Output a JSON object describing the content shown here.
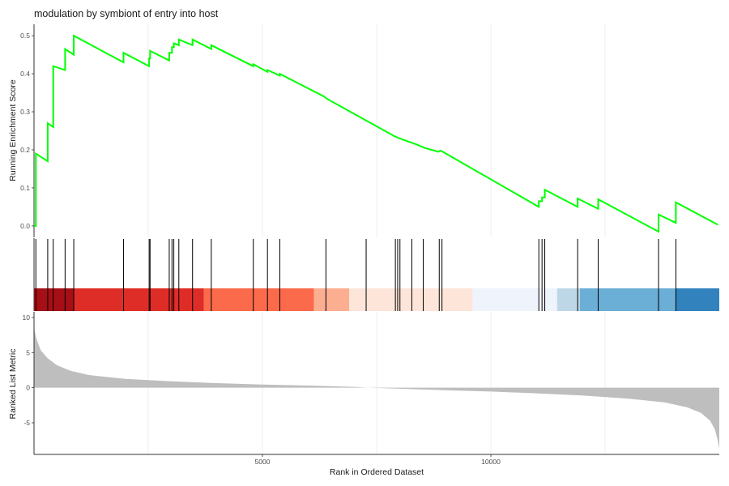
{
  "chart_data": {
    "type": "gsea_enrichment_plot",
    "title": "modulation by symbiont of entry into host",
    "xlabel": "Rank in Ordered Dataset",
    "xlim": [
      0,
      15000
    ],
    "x_ticks": [
      5000,
      10000
    ],
    "es_panel": {
      "ylabel": "Running Enrichment Score",
      "ylim": [
        -0.03,
        0.53
      ],
      "y_ticks": [
        0.0,
        0.1,
        0.2,
        0.3,
        0.4,
        0.5
      ],
      "line_color": "#00ff00",
      "points": [
        [
          0,
          0.0
        ],
        [
          40,
          0.0
        ],
        [
          40,
          0.19
        ],
        [
          300,
          0.17
        ],
        [
          300,
          0.27
        ],
        [
          420,
          0.26
        ],
        [
          420,
          0.42
        ],
        [
          680,
          0.41
        ],
        [
          680,
          0.465
        ],
        [
          870,
          0.45
        ],
        [
          870,
          0.5
        ],
        [
          1960,
          0.43
        ],
        [
          1960,
          0.455
        ],
        [
          2520,
          0.42
        ],
        [
          2520,
          0.44
        ],
        [
          2540,
          0.44
        ],
        [
          2540,
          0.46
        ],
        [
          2960,
          0.435
        ],
        [
          2960,
          0.455
        ],
        [
          3020,
          0.455
        ],
        [
          3020,
          0.47
        ],
        [
          3060,
          0.47
        ],
        [
          3060,
          0.48
        ],
        [
          3170,
          0.475
        ],
        [
          3170,
          0.49
        ],
        [
          3470,
          0.475
        ],
        [
          3470,
          0.49
        ],
        [
          3880,
          0.465
        ],
        [
          3880,
          0.475
        ],
        [
          4800,
          0.42
        ],
        [
          4800,
          0.425
        ],
        [
          5110,
          0.405
        ],
        [
          5110,
          0.41
        ],
        [
          5380,
          0.395
        ],
        [
          5380,
          0.4
        ],
        [
          6350,
          0.34
        ],
        [
          6400,
          0.335
        ],
        [
          7900,
          0.235
        ],
        [
          8050,
          0.228
        ],
        [
          8400,
          0.213
        ],
        [
          8550,
          0.205
        ],
        [
          8850,
          0.195
        ],
        [
          8900,
          0.198
        ],
        [
          11050,
          0.05
        ],
        [
          11050,
          0.065
        ],
        [
          11120,
          0.065
        ],
        [
          11120,
          0.075
        ],
        [
          11180,
          0.075
        ],
        [
          11180,
          0.095
        ],
        [
          11900,
          0.05
        ],
        [
          11900,
          0.072
        ],
        [
          12350,
          0.045
        ],
        [
          12350,
          0.07
        ],
        [
          13670,
          -0.015
        ],
        [
          13670,
          0.03
        ],
        [
          14050,
          0.008
        ],
        [
          14050,
          0.062
        ],
        [
          14970,
          0.003
        ]
      ]
    },
    "hit_positions": [
      40,
      300,
      420,
      680,
      870,
      1960,
      2520,
      2540,
      2960,
      3020,
      3060,
      3170,
      3470,
      3880,
      4800,
      5110,
      5380,
      6390,
      7270,
      7910,
      7960,
      8010,
      8270,
      8520,
      8870,
      8930,
      11050,
      11120,
      11180,
      11900,
      12350,
      13670,
      14050
    ],
    "color_bar": [
      {
        "start": 0,
        "end": 870,
        "color": "#a50f15"
      },
      {
        "start": 870,
        "end": 3720,
        "color": "#de2d26"
      },
      {
        "start": 3720,
        "end": 6130,
        "color": "#fb6a4a"
      },
      {
        "start": 6130,
        "end": 6900,
        "color": "#fcae91"
      },
      {
        "start": 6900,
        "end": 9600,
        "color": "#fee5d9"
      },
      {
        "start": 9600,
        "end": 11450,
        "color": "#eff3fb"
      },
      {
        "start": 11450,
        "end": 11950,
        "color": "#bdd7e7"
      },
      {
        "start": 11950,
        "end": 14050,
        "color": "#6baed6"
      },
      {
        "start": 14050,
        "end": 15000,
        "color": "#3182bd"
      }
    ],
    "ranked_panel": {
      "ylabel": "Ranked List Metric",
      "ylim": [
        -9.5,
        10.8
      ],
      "y_ticks": [
        -5,
        0,
        5,
        10
      ],
      "fill_color": "#bebebe",
      "points": [
        [
          0,
          10.3
        ],
        [
          15,
          8.0
        ],
        [
          60,
          6.8
        ],
        [
          150,
          5.3
        ],
        [
          300,
          4.2
        ],
        [
          500,
          3.2
        ],
        [
          800,
          2.4
        ],
        [
          1200,
          1.8
        ],
        [
          2000,
          1.25
        ],
        [
          3000,
          0.9
        ],
        [
          4000,
          0.65
        ],
        [
          5000,
          0.45
        ],
        [
          6000,
          0.3
        ],
        [
          7000,
          0.12
        ],
        [
          7300,
          0.0
        ],
        [
          8000,
          -0.15
        ],
        [
          9000,
          -0.35
        ],
        [
          10000,
          -0.55
        ],
        [
          11000,
          -0.8
        ],
        [
          12000,
          -1.1
        ],
        [
          13000,
          -1.55
        ],
        [
          13800,
          -2.1
        ],
        [
          14300,
          -2.8
        ],
        [
          14600,
          -3.6
        ],
        [
          14800,
          -4.7
        ],
        [
          14900,
          -5.9
        ],
        [
          14960,
          -7.3
        ],
        [
          15000,
          -8.7
        ]
      ]
    }
  }
}
